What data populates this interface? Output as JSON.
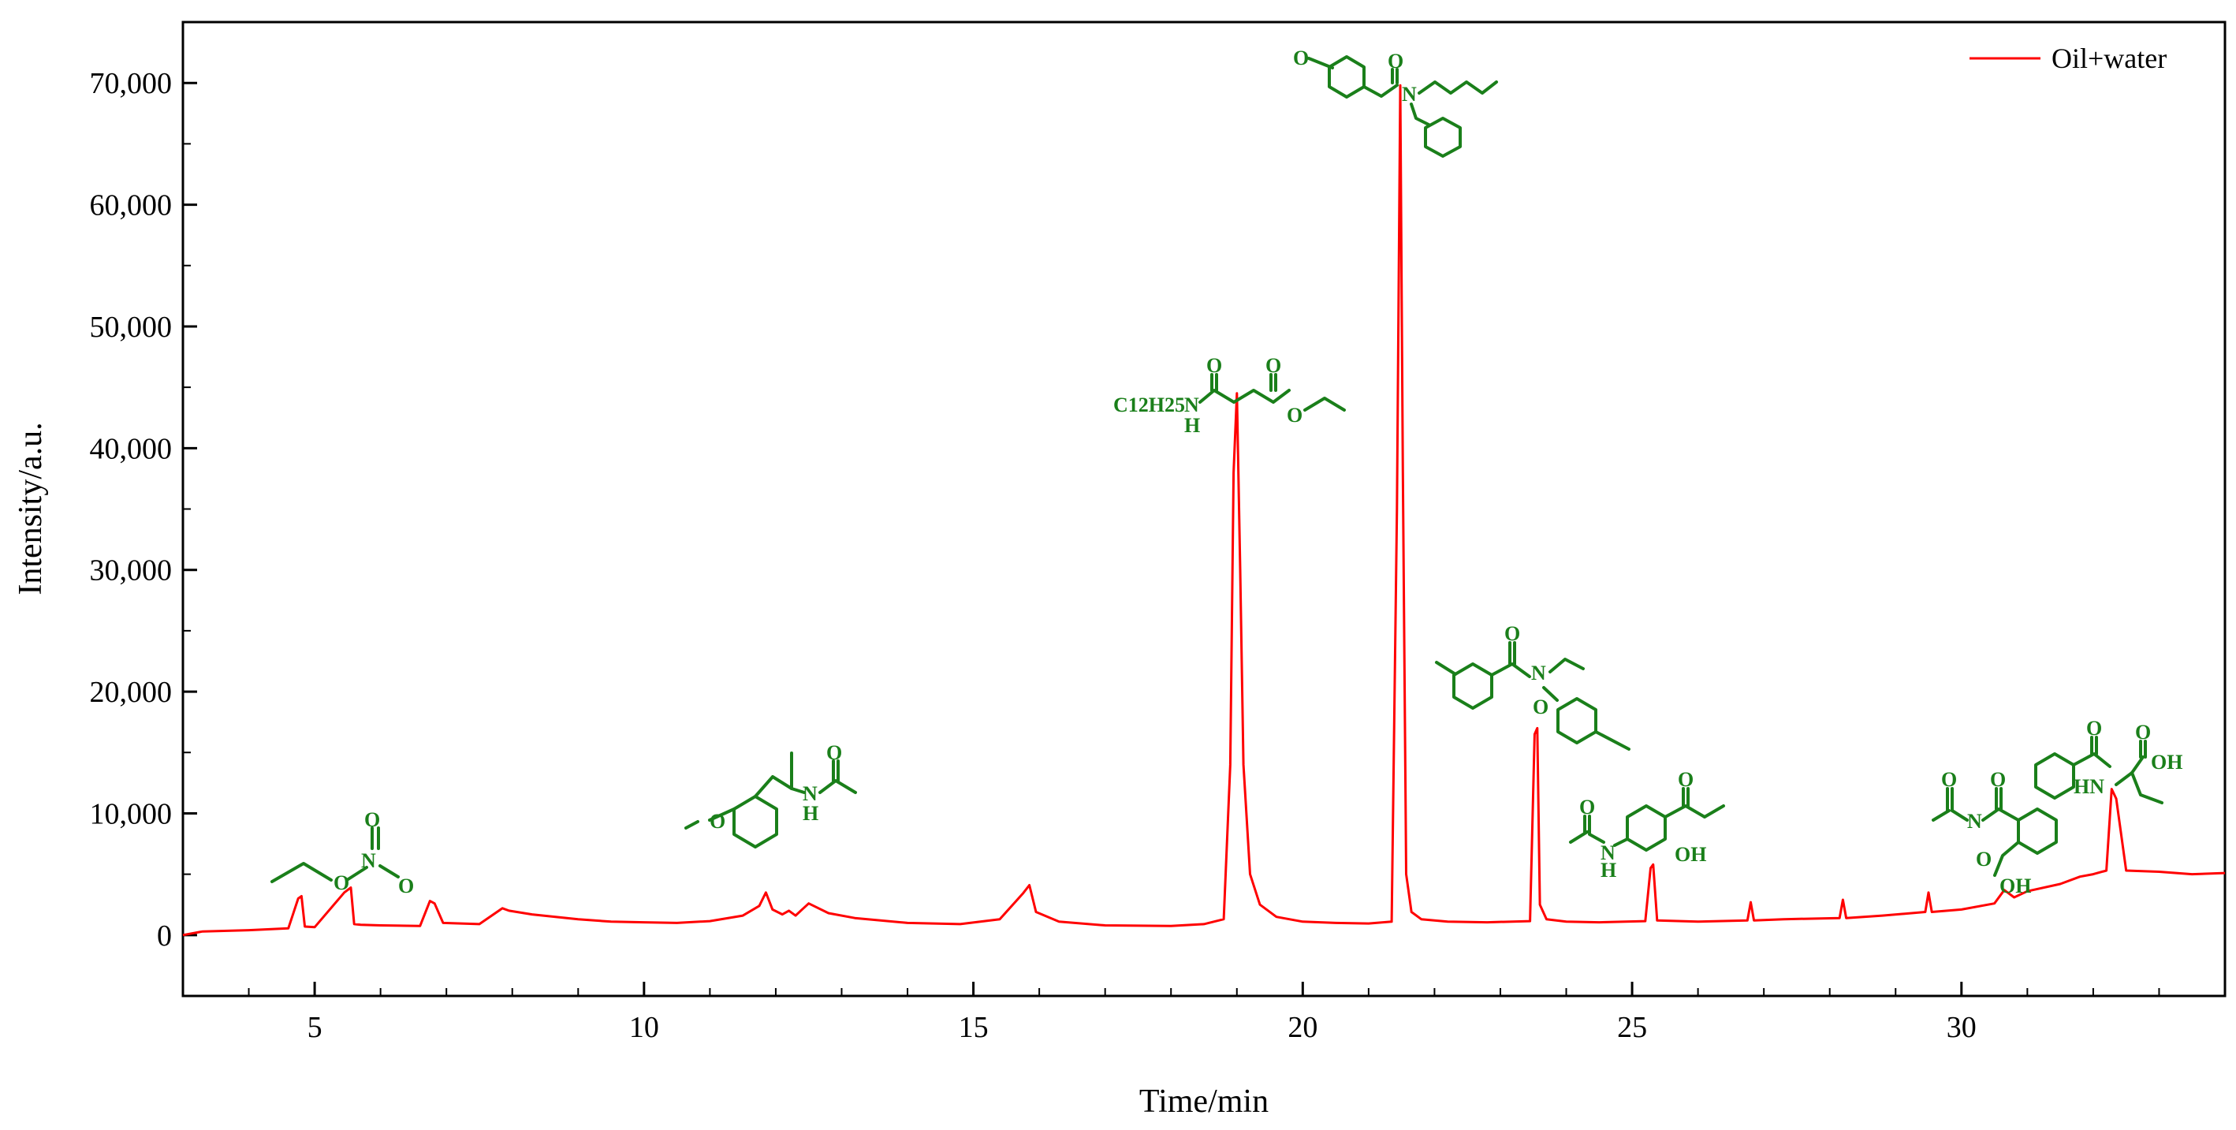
{
  "chart_data": {
    "type": "line",
    "xlabel": "Time/min",
    "ylabel": "Intensity/a.u.",
    "xlim": [
      3,
      34
    ],
    "ylim": [
      -5000,
      75000
    ],
    "xticks": [
      5,
      10,
      15,
      20,
      25,
      30
    ],
    "yticks": [
      0,
      10000,
      20000,
      30000,
      40000,
      50000,
      60000,
      70000
    ],
    "ytick_labels": [
      "0",
      "10,000",
      "20,000",
      "30,000",
      "40,000",
      "50,000",
      "60,000",
      "70,000"
    ],
    "xtick_labels": [
      "5",
      "10",
      "15",
      "20",
      "25",
      "30"
    ],
    "grid": false,
    "legend_position": "top-right",
    "series": [
      {
        "name": "Oil+water",
        "color": "#ff0000",
        "x": [
          3.0,
          3.3,
          4.0,
          4.6,
          4.75,
          4.8,
          4.85,
          5.0,
          5.45,
          5.55,
          5.6,
          5.7,
          6.0,
          6.6,
          6.75,
          6.82,
          6.95,
          7.5,
          7.85,
          7.95,
          8.3,
          9.0,
          9.5,
          10.0,
          10.5,
          11.0,
          11.5,
          11.75,
          11.85,
          11.95,
          12.1,
          12.2,
          12.3,
          12.5,
          12.8,
          13.2,
          14.0,
          14.8,
          15.4,
          15.75,
          15.85,
          15.95,
          16.3,
          17.0,
          18.0,
          18.5,
          18.8,
          18.9,
          18.95,
          19.0,
          19.05,
          19.1,
          19.2,
          19.35,
          19.6,
          20.0,
          20.5,
          21.0,
          21.35,
          21.43,
          21.48,
          21.52,
          21.57,
          21.65,
          21.8,
          22.2,
          22.8,
          23.45,
          23.52,
          23.56,
          23.6,
          23.7,
          24.0,
          24.5,
          25.2,
          25.28,
          25.32,
          25.38,
          26.0,
          26.75,
          26.8,
          26.85,
          27.3,
          28.15,
          28.2,
          28.25,
          28.8,
          29.45,
          29.5,
          29.55,
          30.0,
          30.5,
          30.65,
          30.8,
          31.0,
          31.5,
          31.8,
          32.0,
          32.2,
          32.28,
          32.35,
          32.5,
          33.0,
          33.5,
          34.0
        ],
        "y": [
          0,
          300,
          400,
          550,
          3000,
          3200,
          700,
          650,
          3500,
          3900,
          900,
          850,
          800,
          750,
          2800,
          2600,
          1000,
          900,
          2200,
          2000,
          1700,
          1300,
          1100,
          1050,
          1000,
          1150,
          1600,
          2400,
          3500,
          2100,
          1700,
          2000,
          1600,
          2600,
          1800,
          1400,
          1000,
          900,
          1300,
          3400,
          4100,
          1900,
          1100,
          800,
          750,
          900,
          1300,
          14000,
          38000,
          44500,
          30000,
          14000,
          5000,
          2500,
          1500,
          1100,
          1000,
          950,
          1100,
          35000,
          69800,
          38000,
          5000,
          1900,
          1300,
          1100,
          1050,
          1150,
          16500,
          17000,
          2500,
          1300,
          1100,
          1050,
          1150,
          5500,
          5800,
          1200,
          1100,
          1200,
          2700,
          1200,
          1300,
          1400,
          2900,
          1400,
          1600,
          1900,
          3500,
          1900,
          2100,
          2600,
          3700,
          3100,
          3600,
          4200,
          4800,
          5000,
          5300,
          12000,
          11200,
          5300,
          5200,
          5000,
          5100
        ]
      }
    ],
    "annotations": [
      "C12H25",
      "N",
      "H",
      "O",
      "OH",
      "HN"
    ]
  }
}
